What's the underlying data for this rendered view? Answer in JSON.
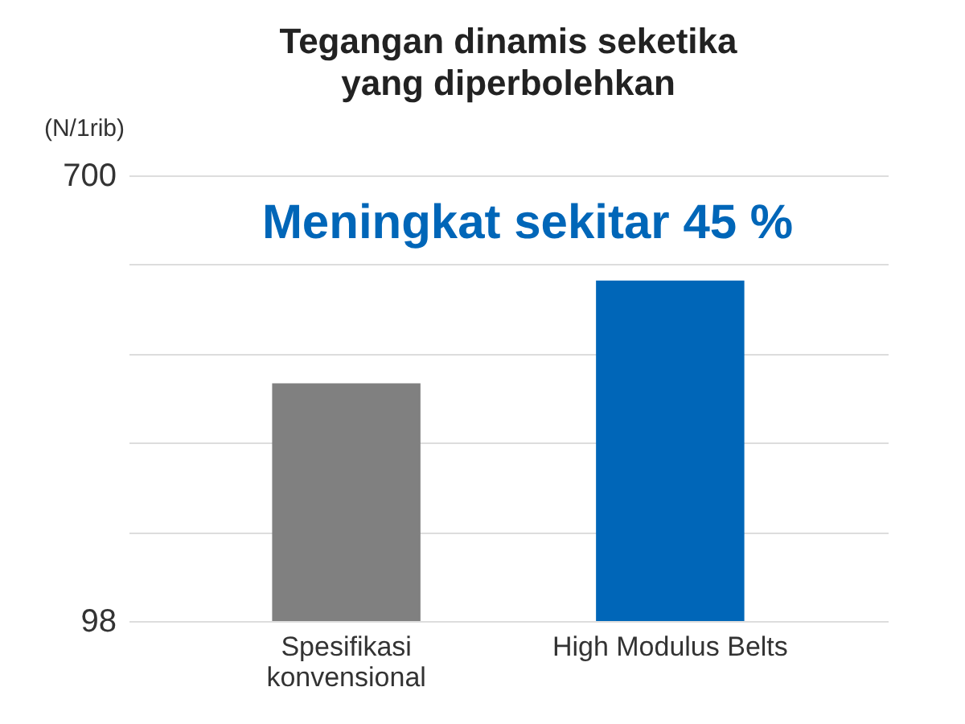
{
  "chart_data": {
    "type": "bar",
    "title": "Tegangan dinamis seketika yang diperbolehkan",
    "ylabel": "(N/1rib)",
    "categories": [
      "Spesifikasi konvensional",
      "High Modulus Belts"
    ],
    "values": [
      419,
      558
    ],
    "colors": [
      "#808080",
      "#0066b8"
    ],
    "ylim": [
      98,
      700
    ],
    "yticks": [
      98,
      {
        "value": 218.4,
        "label": null
      },
      {
        "value": 338.8,
        "label": null
      },
      {
        "value": 459.2,
        "label": null
      },
      {
        "value": 579.6,
        "label": null
      },
      700
    ],
    "grid": true,
    "annotations": [
      "Meningkat sekitar 45 %"
    ]
  }
}
